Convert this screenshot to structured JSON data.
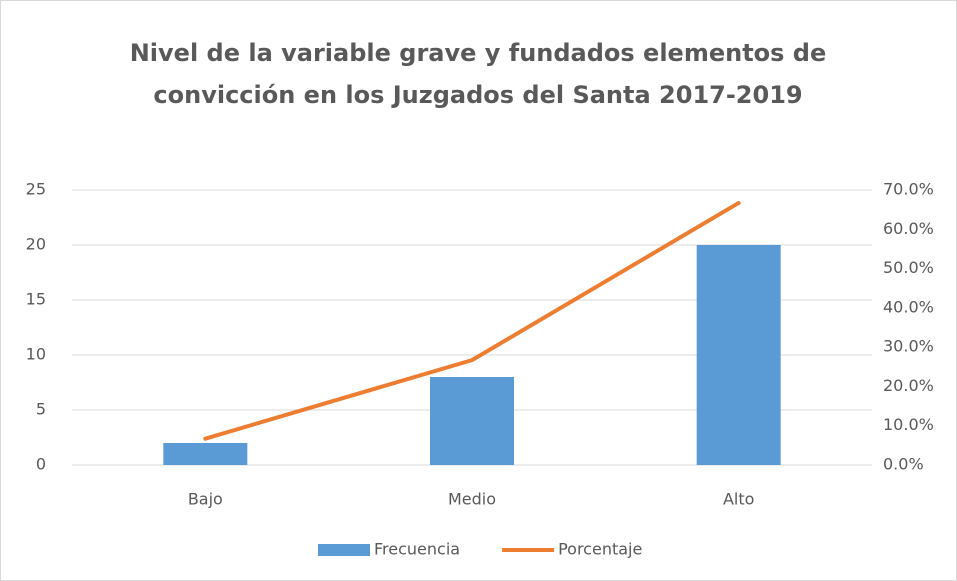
{
  "chart_data": {
    "type": "bar",
    "title": [
      "Nivel de la variable grave y fundados elementos de",
      "convicción en los Juzgados del Santa 2017-2019"
    ],
    "categories": [
      "Bajo",
      "Medio",
      "Alto"
    ],
    "series": [
      {
        "name": "Frecuencia",
        "type": "bar",
        "color": "#5b9bd5",
        "values": [
          2,
          8,
          20
        ]
      },
      {
        "name": "Porcentaje",
        "type": "line",
        "axis": "y2",
        "color": "#ed7d31",
        "values": [
          6.7,
          26.7,
          66.7
        ]
      }
    ],
    "ylim": [
      0,
      25
    ],
    "yticks": [
      0,
      5,
      10,
      15,
      20,
      25
    ],
    "y2lim": [
      0,
      70
    ],
    "y2ticks": [
      {
        "value": 0,
        "label": "0.0%"
      },
      {
        "value": 10,
        "label": "10.0%"
      },
      {
        "value": 20,
        "label": "20.0%"
      },
      {
        "value": 30,
        "label": "30.0%"
      },
      {
        "value": 40,
        "label": "40.0%"
      },
      {
        "value": 50,
        "label": "50.0%"
      },
      {
        "value": 60,
        "label": "60.0%"
      },
      {
        "value": 70,
        "label": "70.0%"
      }
    ],
    "grid": true,
    "legend": "bottom"
  }
}
